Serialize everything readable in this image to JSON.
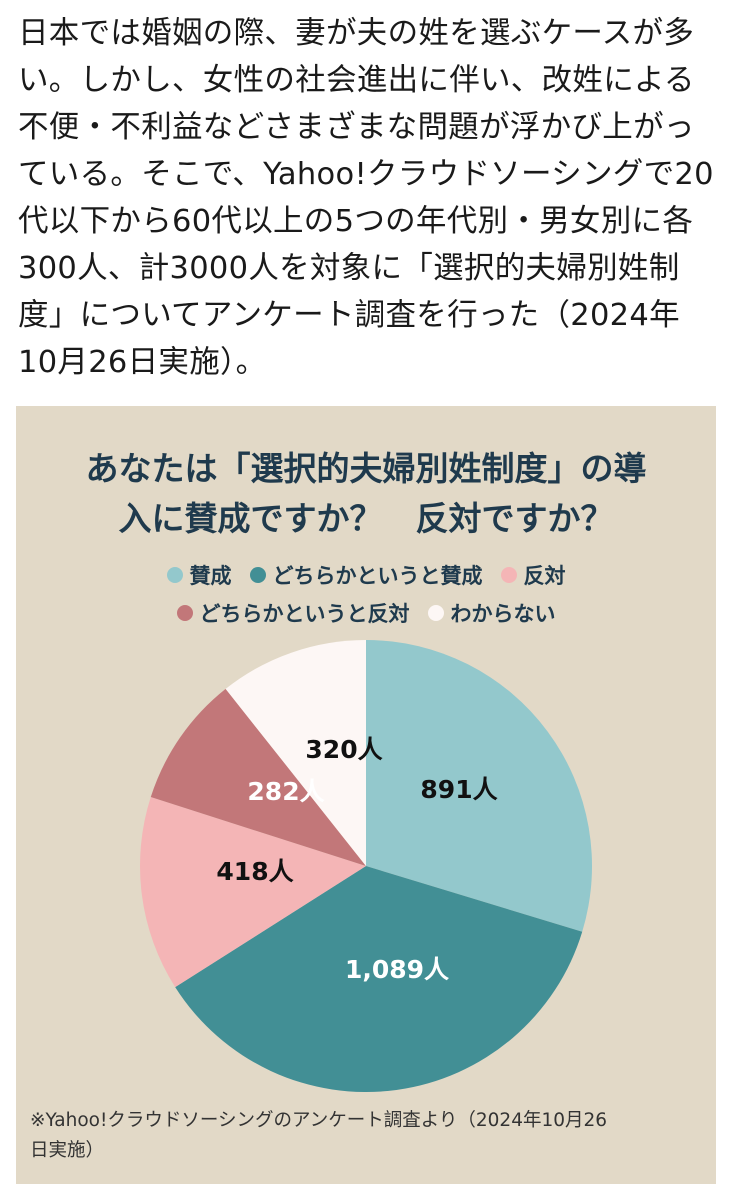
{
  "article": {
    "text": "日本では婚姻の際、妻が夫の姓を選ぶケースが多\nい。しかし、女性の社会進出に伴い、改姓による\n不便・不利益などさまざまな問題が浮かび上がっ\nている。そこで、Yahoo!クラウドソーシングで20\n代以下から60代以上の5つの年代別・男女別に各\n300人、計3000人を対象に「選択的夫婦別姓制\n度」についてアンケート調査を行った（2024年\n10月26日実施）。"
  },
  "chart_data": {
    "type": "pie",
    "title": "あなたは「選択的夫婦別姓制度」の導\n入に賛成ですか？　反対ですか？",
    "legend_placement": "top",
    "slices": [
      {
        "name": "賛成",
        "value": 891,
        "label": "891人",
        "color": "#93c8cc",
        "label_color": "#111111"
      },
      {
        "name": "どちらかというと賛成",
        "value": 1089,
        "label": "1,089人",
        "color": "#428f95",
        "label_color": "#ffffff"
      },
      {
        "name": "反対",
        "value": 418,
        "label": "418人",
        "color": "#f4b5b6",
        "label_color": "#111111"
      },
      {
        "name": "どちらかというと反対",
        "value": 282,
        "label": "282人",
        "color": "#c27779",
        "label_color": "#ffffff"
      },
      {
        "name": "わからない",
        "value": 320,
        "label": "320人",
        "color": "#fdf7f5",
        "label_color": "#111111"
      }
    ],
    "note": "※Yahoo!クラウドソーシングのアンケート調査より（2024年10月26\n日実施）"
  },
  "colors": {
    "card_background": "#e2d9c7",
    "title": "#1f3a4d"
  }
}
